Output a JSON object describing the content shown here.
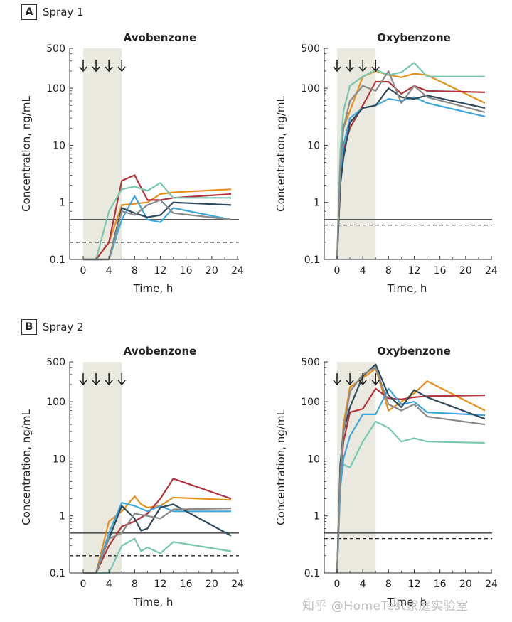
{
  "panels": [
    {
      "letter": "A",
      "title": "Spray 1"
    },
    {
      "letter": "B",
      "title": "Spray 2"
    }
  ],
  "watermark": "知乎 @HomeTest家庭实验室",
  "colors": {
    "orange": "#e8901d",
    "red": "#b3333c",
    "teal": "#78c7b0",
    "blue": "#3fa6dc",
    "dark": "#2f4a5b",
    "gray": "#8a8a8a"
  },
  "chart_data": [
    {
      "type": "line",
      "panel": "A",
      "title": "Avobenzone",
      "xlabel": "Time, h",
      "ylabel": "Concentration, ng/mL",
      "xlim": [
        -2,
        24
      ],
      "ylim": [
        0.1,
        500
      ],
      "yscale": "log",
      "xticks": [
        0,
        4,
        8,
        12,
        16,
        20,
        24
      ],
      "yticks": [
        {
          "v": 0.1,
          "label": "0.1"
        },
        {
          "v": 1,
          "label": "1"
        },
        {
          "v": 10,
          "label": "10"
        },
        {
          "v": 100,
          "label": "100"
        },
        {
          "v": 500,
          "label": "500"
        }
      ],
      "shaded_region": [
        0,
        6
      ],
      "arrow_times": [
        0,
        2,
        4,
        6
      ],
      "ref_lines": [
        {
          "y": 0.5,
          "style": "solid"
        },
        {
          "y": 0.2,
          "style": "dashed"
        }
      ],
      "series": [
        {
          "color": "#e8901d",
          "x": [
            0,
            2,
            4,
            6,
            8,
            10,
            12,
            14,
            23
          ],
          "y": [
            0.1,
            0.1,
            0.2,
            0.9,
            0.95,
            1.0,
            1.4,
            1.5,
            1.7
          ]
        },
        {
          "color": "#b3333c",
          "x": [
            0,
            2,
            4,
            6,
            8,
            10,
            12,
            14,
            23
          ],
          "y": [
            0.1,
            0.1,
            0.2,
            2.4,
            3.0,
            1.1,
            1.1,
            1.2,
            1.4
          ]
        },
        {
          "color": "#78c7b0",
          "x": [
            0,
            2,
            4,
            6,
            8,
            10,
            12,
            14,
            23
          ],
          "y": [
            0.1,
            0.1,
            0.7,
            1.7,
            1.9,
            1.6,
            2.2,
            1.2,
            1.2
          ]
        },
        {
          "color": "#3fa6dc",
          "x": [
            0,
            2,
            4,
            6,
            8,
            10,
            12,
            14,
            23
          ],
          "y": [
            0.1,
            0.1,
            0.1,
            0.5,
            1.3,
            0.5,
            0.45,
            0.8,
            0.5
          ]
        },
        {
          "color": "#2f4a5b",
          "x": [
            0,
            2,
            4,
            6,
            8,
            10,
            12,
            14,
            23
          ],
          "y": [
            0.1,
            0.1,
            0.1,
            0.8,
            0.65,
            0.55,
            0.6,
            1.0,
            0.9
          ]
        },
        {
          "color": "#8a8a8a",
          "x": [
            0,
            2,
            4,
            6,
            8,
            10,
            12,
            14,
            23
          ],
          "y": [
            0.1,
            0.1,
            0.1,
            0.7,
            0.6,
            0.9,
            1.1,
            0.65,
            0.5
          ]
        }
      ]
    },
    {
      "type": "line",
      "panel": "A",
      "title": "Oxybenzone",
      "xlabel": "Time, h",
      "ylabel": "Concentration, ng/mL",
      "xlim": [
        -2,
        24
      ],
      "ylim": [
        0.1,
        500
      ],
      "yscale": "log",
      "xticks": [
        0,
        4,
        8,
        12,
        16,
        20,
        24
      ],
      "yticks": [
        {
          "v": 0.1,
          "label": "0.1"
        },
        {
          "v": 1,
          "label": "1"
        },
        {
          "v": 10,
          "label": "10"
        },
        {
          "v": 100,
          "label": "100"
        },
        {
          "v": 500,
          "label": "500"
        }
      ],
      "shaded_region": [
        0,
        6
      ],
      "arrow_times": [
        0,
        2,
        4,
        6
      ],
      "ref_lines": [
        {
          "y": 0.5,
          "style": "solid"
        },
        {
          "y": 0.4,
          "style": "dashed"
        }
      ],
      "series": [
        {
          "color": "#e8901d",
          "x": [
            0,
            0.5,
            1,
            2,
            4,
            6,
            8,
            10,
            12,
            14,
            23
          ],
          "y": [
            0.1,
            5,
            20,
            40,
            160,
            200,
            170,
            155,
            180,
            170,
            55
          ]
        },
        {
          "color": "#b3333c",
          "x": [
            0,
            0.5,
            1,
            2,
            4,
            6,
            8,
            10,
            12,
            14,
            23
          ],
          "y": [
            0.1,
            2,
            8,
            20,
            50,
            130,
            130,
            80,
            110,
            90,
            85
          ]
        },
        {
          "color": "#78c7b0",
          "x": [
            0,
            0.5,
            1,
            2,
            4,
            6,
            8,
            10,
            12,
            14,
            23
          ],
          "y": [
            0.1,
            8,
            40,
            110,
            160,
            210,
            170,
            190,
            280,
            160,
            160
          ]
        },
        {
          "color": "#3fa6dc",
          "x": [
            0,
            0.5,
            1,
            2,
            4,
            6,
            8,
            10,
            12,
            14,
            23
          ],
          "y": [
            0.1,
            3,
            10,
            30,
            45,
            50,
            65,
            60,
            70,
            55,
            32
          ]
        },
        {
          "color": "#2f4a5b",
          "x": [
            0,
            0.5,
            1,
            2,
            4,
            6,
            8,
            10,
            12,
            14,
            23
          ],
          "y": [
            0.1,
            2,
            6,
            25,
            45,
            50,
            100,
            70,
            65,
            75,
            45
          ]
        },
        {
          "color": "#8a8a8a",
          "x": [
            0,
            0.5,
            1,
            2,
            4,
            6,
            8,
            10,
            12,
            14,
            23
          ],
          "y": [
            0.1,
            4,
            20,
            60,
            110,
            90,
            200,
            55,
            110,
            70,
            38
          ]
        }
      ]
    },
    {
      "type": "line",
      "panel": "B",
      "title": "Avobenzone",
      "xlabel": "Time, h",
      "ylabel": "Concentration, ng/mL",
      "xlim": [
        -2,
        24
      ],
      "ylim": [
        0.1,
        500
      ],
      "yscale": "log",
      "xticks": [
        0,
        4,
        8,
        12,
        16,
        20,
        24
      ],
      "yticks": [
        {
          "v": 0.1,
          "label": "0.1"
        },
        {
          "v": 1,
          "label": "1"
        },
        {
          "v": 10,
          "label": "10"
        },
        {
          "v": 100,
          "label": "100"
        },
        {
          "v": 500,
          "label": "500"
        }
      ],
      "shaded_region": [
        0,
        6
      ],
      "arrow_times": [
        0,
        2,
        4,
        6
      ],
      "ref_lines": [
        {
          "y": 0.5,
          "style": "solid"
        },
        {
          "y": 0.2,
          "style": "dashed"
        }
      ],
      "series": [
        {
          "color": "#e8901d",
          "x": [
            0,
            2,
            4,
            6,
            8,
            9,
            10,
            12,
            14,
            23
          ],
          "y": [
            0.1,
            0.1,
            0.8,
            1.2,
            2.2,
            1.6,
            1.4,
            1.5,
            2.1,
            1.9
          ]
        },
        {
          "color": "#b3333c",
          "x": [
            0,
            2,
            4,
            6,
            8,
            10,
            12,
            14,
            23
          ],
          "y": [
            0.1,
            0.1,
            0.3,
            0.65,
            0.8,
            1.1,
            2.0,
            4.5,
            2.0
          ]
        },
        {
          "color": "#78c7b0",
          "x": [
            0,
            2,
            4,
            6,
            8,
            9,
            10,
            12,
            14,
            23
          ],
          "y": [
            0.1,
            0.1,
            0.1,
            0.3,
            0.4,
            0.24,
            0.28,
            0.22,
            0.35,
            0.24
          ]
        },
        {
          "color": "#3fa6dc",
          "x": [
            0,
            2,
            4,
            6,
            8,
            10,
            12,
            14,
            23
          ],
          "y": [
            0.1,
            0.1,
            0.5,
            1.7,
            1.5,
            1.2,
            1.5,
            1.2,
            1.2
          ]
        },
        {
          "color": "#2f4a5b",
          "x": [
            0,
            2,
            4,
            6,
            8,
            9,
            10,
            12,
            14,
            23
          ],
          "y": [
            0.1,
            0.1,
            0.4,
            1.5,
            0.9,
            0.55,
            0.6,
            1.4,
            1.6,
            0.45
          ]
        },
        {
          "color": "#8a8a8a",
          "x": [
            0,
            2,
            4,
            6,
            8,
            10,
            12,
            14,
            23
          ],
          "y": [
            0.1,
            0.1,
            0.4,
            0.5,
            1.1,
            1.0,
            0.9,
            1.3,
            1.35
          ]
        }
      ]
    },
    {
      "type": "line",
      "panel": "B",
      "title": "Oxybenzone",
      "xlabel": "Time, h",
      "ylabel": "Concentration, ng/mL",
      "xlim": [
        -2,
        24
      ],
      "ylim": [
        0.1,
        500
      ],
      "yscale": "log",
      "xticks": [
        0,
        4,
        8,
        12,
        16,
        20,
        24
      ],
      "yticks": [
        {
          "v": 0.1,
          "label": "0.1"
        },
        {
          "v": 1,
          "label": "1"
        },
        {
          "v": 10,
          "label": "10"
        },
        {
          "v": 100,
          "label": "100"
        },
        {
          "v": 500,
          "label": "500"
        }
      ],
      "shaded_region": [
        0,
        6
      ],
      "arrow_times": [
        0,
        2,
        4,
        6
      ],
      "ref_lines": [
        {
          "y": 0.5,
          "style": "solid"
        },
        {
          "y": 0.4,
          "style": "dashed"
        }
      ],
      "series": [
        {
          "color": "#e8901d",
          "x": [
            0,
            0.5,
            1,
            2,
            4,
            6,
            8,
            10,
            12,
            14,
            23
          ],
          "y": [
            0.1,
            5,
            40,
            180,
            260,
            380,
            70,
            100,
            140,
            230,
            70
          ]
        },
        {
          "color": "#b3333c",
          "x": [
            0,
            0.5,
            1,
            2,
            4,
            6,
            8,
            10,
            12,
            14,
            23
          ],
          "y": [
            0.1,
            5,
            20,
            65,
            75,
            170,
            115,
            110,
            120,
            125,
            130
          ]
        },
        {
          "color": "#78c7b0",
          "x": [
            0,
            0.5,
            1,
            2,
            4,
            6,
            8,
            10,
            12,
            14,
            23
          ],
          "y": [
            0.1,
            4,
            8,
            7,
            20,
            45,
            35,
            20,
            23,
            20,
            19
          ]
        },
        {
          "color": "#3fa6dc",
          "x": [
            0,
            0.5,
            1,
            2,
            4,
            6,
            8,
            10,
            12,
            14,
            23
          ],
          "y": [
            0.1,
            3,
            10,
            25,
            60,
            60,
            170,
            90,
            100,
            65,
            58
          ]
        },
        {
          "color": "#2f4a5b",
          "x": [
            0,
            0.5,
            1,
            2,
            4,
            6,
            8,
            10,
            12,
            14,
            23
          ],
          "y": [
            0.1,
            8,
            30,
            80,
            280,
            450,
            130,
            80,
            160,
            120,
            50
          ]
        },
        {
          "color": "#8a8a8a",
          "x": [
            0,
            0.5,
            1,
            2,
            4,
            6,
            8,
            10,
            12,
            14,
            23
          ],
          "y": [
            0.1,
            5,
            30,
            150,
            300,
            400,
            90,
            70,
            90,
            55,
            40
          ]
        }
      ]
    }
  ]
}
